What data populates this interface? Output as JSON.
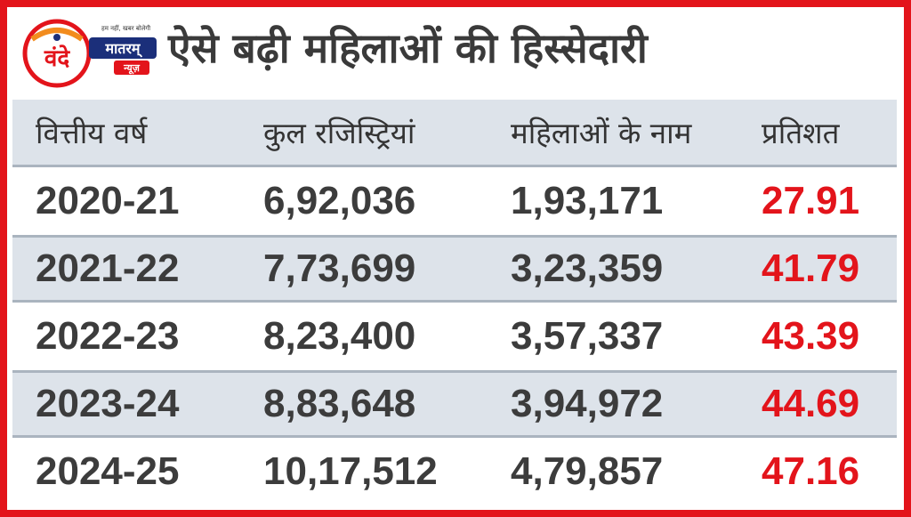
{
  "header": {
    "title": "ऐसे बढ़ी महिलाओं की हिस्सेदारी",
    "logo": {
      "main": "वंदे",
      "sub": "मातरम्",
      "tag": "न्यूज़",
      "tagline": "हम नहीं, खबर बोलेगी",
      "colors": {
        "red": "#e3141b",
        "orange": "#f28c1e",
        "navy": "#1b2f7a"
      }
    }
  },
  "chart_data": {
    "type": "table",
    "title": "ऐसे बढ़ी महिलाओं की हिस्सेदारी",
    "columns": [
      "वित्तीय वर्ष",
      "कुल रजिस्ट्रियां",
      "महिलाओं के नाम",
      "प्रतिशत"
    ],
    "rows": [
      [
        "2020-21",
        "6,92,036",
        "1,93,171",
        "27.91"
      ],
      [
        "2021-22",
        "7,73,699",
        "3,23,359",
        "41.79"
      ],
      [
        "2022-23",
        "8,23,400",
        "3,57,337",
        "43.39"
      ],
      [
        "2023-24",
        "8,83,648",
        "3,94,972",
        "44.69"
      ],
      [
        "2024-25",
        "10,17,512",
        "4,79,857",
        "47.16"
      ]
    ]
  },
  "colors": {
    "border": "#e3141b",
    "percent": "#e3141b",
    "alt_row": "#dde3ea",
    "text": "#3c3c3c"
  }
}
